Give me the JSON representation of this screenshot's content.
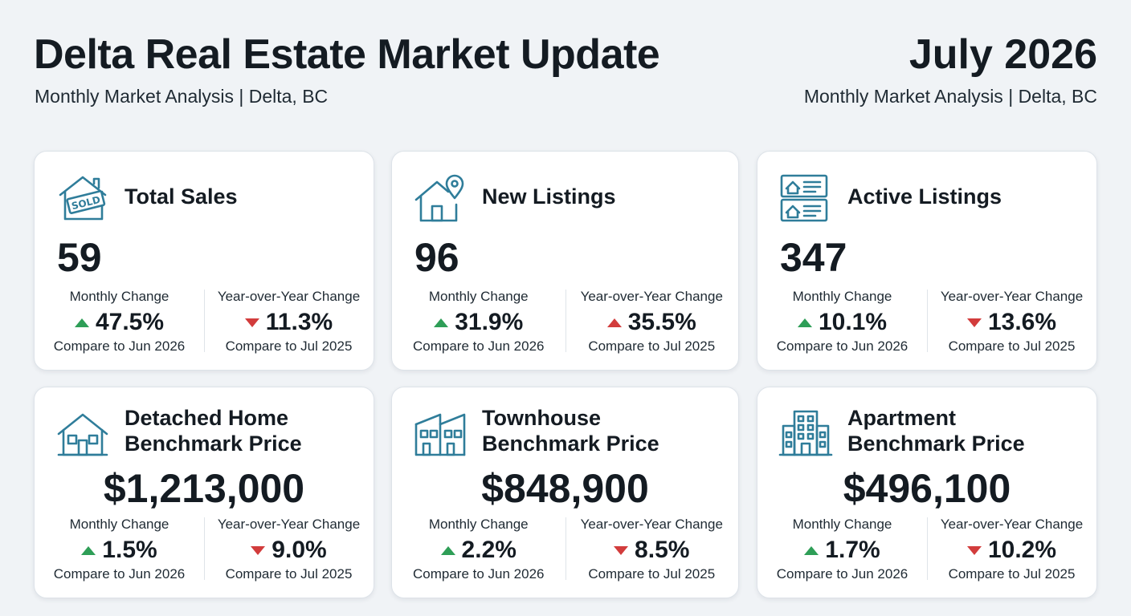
{
  "header": {
    "title": "Delta Real Estate Market Update",
    "subtitle": "Monthly Market Analysis | Delta, BC",
    "date": "July 2026",
    "subtitle_right": "Monthly Market Analysis | Delta, BC"
  },
  "colors": {
    "up": "#2e9e57",
    "down": "#d23c3c",
    "icon": "#2f7d9a"
  },
  "cards": [
    {
      "title": "Total Sales",
      "icon": "house-sold-icon",
      "value": "59",
      "monthly": {
        "label": "Monthly Change",
        "value": "47.5%",
        "direction": "up",
        "color": "green",
        "compare": "Compare to Jun 2026"
      },
      "yoy": {
        "label": "Year-over-Year Change",
        "value": "11.3%",
        "direction": "down",
        "color": "red",
        "compare": "Compare to Jul 2025"
      }
    },
    {
      "title": "New Listings",
      "icon": "house-location-pin-icon",
      "value": "96",
      "monthly": {
        "label": "Monthly Change",
        "value": "31.9%",
        "direction": "up",
        "color": "green",
        "compare": "Compare to Jun 2026"
      },
      "yoy": {
        "label": "Year-over-Year Change",
        "value": "35.5%",
        "direction": "up",
        "color": "red",
        "compare": "Compare to Jul 2025"
      }
    },
    {
      "title": "Active Listings",
      "icon": "listing-cards-icon",
      "value": "347",
      "monthly": {
        "label": "Monthly Change",
        "value": "10.1%",
        "direction": "up",
        "color": "green",
        "compare": "Compare to Jun 2026"
      },
      "yoy": {
        "label": "Year-over-Year Change",
        "value": "13.6%",
        "direction": "down",
        "color": "red",
        "compare": "Compare to Jul 2025"
      }
    },
    {
      "title_line1": "Detached Home",
      "title_line2": "Benchmark Price",
      "icon": "detached-house-icon",
      "value": "$1,213,000",
      "monthly": {
        "label": "Monthly Change",
        "value": "1.5%",
        "direction": "up",
        "color": "green",
        "compare": "Compare to Jun 2026"
      },
      "yoy": {
        "label": "Year-over-Year Change",
        "value": "9.0%",
        "direction": "down",
        "color": "red",
        "compare": "Compare to Jul 2025"
      }
    },
    {
      "title_line1": "Townhouse",
      "title_line2": "Benchmark Price",
      "icon": "townhouse-icon",
      "value": "$848,900",
      "monthly": {
        "label": "Monthly Change",
        "value": "2.2%",
        "direction": "up",
        "color": "green",
        "compare": "Compare to Jun 2026"
      },
      "yoy": {
        "label": "Year-over-Year Change",
        "value": "8.5%",
        "direction": "down",
        "color": "red",
        "compare": "Compare to Jul 2025"
      }
    },
    {
      "title_line1": "Apartment",
      "title_line2": "Benchmark Price",
      "icon": "apartment-building-icon",
      "value": "$496,100",
      "monthly": {
        "label": "Monthly Change",
        "value": "1.7%",
        "direction": "up",
        "color": "green",
        "compare": "Compare to Jun 2026"
      },
      "yoy": {
        "label": "Year-over-Year Change",
        "value": "10.2%",
        "direction": "down",
        "color": "red",
        "compare": "Compare to Jul 2025"
      }
    }
  ]
}
